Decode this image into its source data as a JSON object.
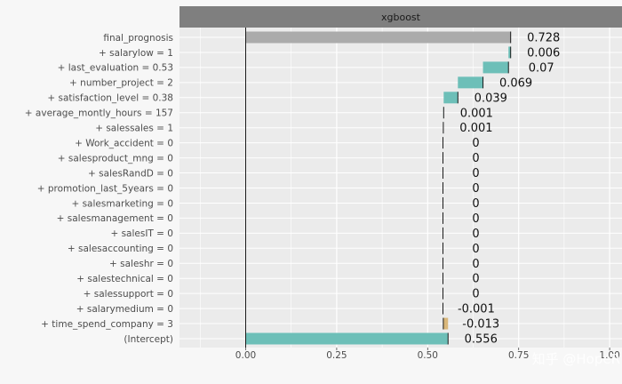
{
  "chart_data": {
    "type": "bar",
    "subtype": "waterfall-breakdown",
    "panel_title": "xgboost",
    "xlim": [
      -0.25,
      1.0
    ],
    "x_ticks": [
      0.0,
      0.25,
      0.5,
      0.75,
      1.0
    ],
    "x_tick_labels": [
      "0.00",
      "0.25",
      "0.50",
      "0.75",
      "1.00"
    ],
    "grid": true,
    "colors": {
      "prediction": "#ababab",
      "positive": "#6dbfb8",
      "negative": "#d9b77a",
      "panel": "#ebebeb",
      "strip": "#7f7f7f",
      "grid": "#ffffff"
    },
    "rows": [
      {
        "label": "final_prognosis",
        "contribution": 0.728,
        "start": 0.0,
        "end": 0.728,
        "value_label": "0.728",
        "kind": "prediction"
      },
      {
        "label": "+ salarylow = 1",
        "contribution": 0.006,
        "start": 0.722,
        "end": 0.728,
        "value_label": "0.006",
        "kind": "positive"
      },
      {
        "label": "+ last_evaluation = 0.53",
        "contribution": 0.07,
        "start": 0.652,
        "end": 0.722,
        "value_label": "0.07",
        "kind": "positive"
      },
      {
        "label": "+ number_project = 2",
        "contribution": 0.069,
        "start": 0.583,
        "end": 0.652,
        "value_label": "0.069",
        "kind": "positive"
      },
      {
        "label": "+ satisfaction_level = 0.38",
        "contribution": 0.039,
        "start": 0.544,
        "end": 0.583,
        "value_label": "0.039",
        "kind": "positive"
      },
      {
        "label": "+ average_montly_hours = 157",
        "contribution": 0.001,
        "start": 0.543,
        "end": 0.544,
        "value_label": "0.001",
        "kind": "positive"
      },
      {
        "label": "+ salessales = 1",
        "contribution": 0.001,
        "start": 0.542,
        "end": 0.543,
        "value_label": "0.001",
        "kind": "positive"
      },
      {
        "label": "+ Work_accident = 0",
        "contribution": 0.0,
        "start": 0.542,
        "end": 0.542,
        "value_label": "0",
        "kind": "positive"
      },
      {
        "label": "+ salesproduct_mng = 0",
        "contribution": 0.0,
        "start": 0.542,
        "end": 0.542,
        "value_label": "0",
        "kind": "positive"
      },
      {
        "label": "+ salesRandD = 0",
        "contribution": 0.0,
        "start": 0.542,
        "end": 0.542,
        "value_label": "0",
        "kind": "positive"
      },
      {
        "label": "+ promotion_last_5years = 0",
        "contribution": 0.0,
        "start": 0.542,
        "end": 0.542,
        "value_label": "0",
        "kind": "positive"
      },
      {
        "label": "+ salesmarketing = 0",
        "contribution": 0.0,
        "start": 0.542,
        "end": 0.542,
        "value_label": "0",
        "kind": "positive"
      },
      {
        "label": "+ salesmanagement = 0",
        "contribution": 0.0,
        "start": 0.542,
        "end": 0.542,
        "value_label": "0",
        "kind": "positive"
      },
      {
        "label": "+ salesIT = 0",
        "contribution": 0.0,
        "start": 0.542,
        "end": 0.542,
        "value_label": "0",
        "kind": "positive"
      },
      {
        "label": "+ salesaccounting = 0",
        "contribution": 0.0,
        "start": 0.542,
        "end": 0.542,
        "value_label": "0",
        "kind": "positive"
      },
      {
        "label": "+ saleshr = 0",
        "contribution": 0.0,
        "start": 0.542,
        "end": 0.542,
        "value_label": "0",
        "kind": "positive"
      },
      {
        "label": "+ salestechnical = 0",
        "contribution": 0.0,
        "start": 0.542,
        "end": 0.542,
        "value_label": "0",
        "kind": "positive"
      },
      {
        "label": "+ salessupport = 0",
        "contribution": 0.0,
        "start": 0.542,
        "end": 0.542,
        "value_label": "0",
        "kind": "positive"
      },
      {
        "label": "+ salarymedium = 0",
        "contribution": -0.001,
        "start": 0.542,
        "end": 0.543,
        "value_label": "-0.001",
        "kind": "negative"
      },
      {
        "label": "+ time_spend_company = 3",
        "contribution": -0.013,
        "start": 0.543,
        "end": 0.556,
        "value_label": "-0.013",
        "kind": "negative"
      },
      {
        "label": "(Intercept)",
        "contribution": 0.556,
        "start": 0.0,
        "end": 0.556,
        "value_label": "0.556",
        "kind": "positive"
      }
    ]
  },
  "watermark": "知乎 @HopeR"
}
